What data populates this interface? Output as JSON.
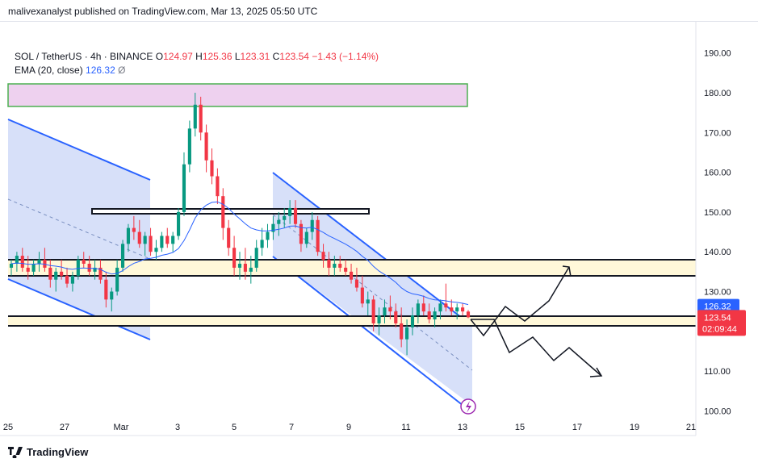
{
  "caption": "malivexanalyst published on TradingView.com, Mar 13, 2025 05:50 UTC",
  "brand": "TradingView",
  "legend": {
    "symbol": "SOL / TetherUS · 4h · BINANCE",
    "o_label": "O",
    "o": "124.97",
    "h_label": "H",
    "h": "125.36",
    "l_label": "L",
    "l": "123.31",
    "c_label": "C",
    "c": "123.54",
    "change": "−1.43 (−1.14%)",
    "ema_label": "EMA (20, close)",
    "ema_value": "126.32",
    "ema_extra": "Ø"
  },
  "price_tags": {
    "ema": "126.32",
    "close": "123.54",
    "countdown": "02:09:44"
  },
  "colors": {
    "up": "#089981",
    "down": "#f23645",
    "ema": "#2962ff",
    "channel_fill": "#c9d6f7",
    "pink_zone": "#eed1ef",
    "pink_border": "#4caf50",
    "yellow_zone": "#fff8d9"
  },
  "chart_data": {
    "type": "candlestick",
    "symbol": "SOL / TetherUS",
    "interval": "4h",
    "exchange": "BINANCE",
    "x_ticks": [
      "25",
      "27",
      "Mar",
      "3",
      "5",
      "7",
      "9",
      "11",
      "13",
      "15",
      "17",
      "19",
      "21"
    ],
    "y_ticks": [
      100,
      110,
      120,
      130,
      140,
      150,
      160,
      170,
      180,
      190
    ],
    "y_tick_labels": [
      "100.00",
      "110.00",
      "120.00",
      "130.00",
      "140.00",
      "150.00",
      "160.00",
      "170.00",
      "180.00",
      "190.00"
    ],
    "ylim": [
      98,
      197
    ],
    "xlim_days": [
      25,
      21
    ],
    "ohlc": [
      [
        136,
        138,
        134,
        137
      ],
      [
        137,
        140,
        135,
        139
      ],
      [
        139,
        141,
        135,
        136
      ],
      [
        136,
        139,
        133,
        135
      ],
      [
        135,
        138,
        134,
        137
      ],
      [
        137,
        140,
        135,
        138
      ],
      [
        138,
        141,
        135,
        136
      ],
      [
        136,
        138,
        131,
        133
      ],
      [
        133,
        136,
        130,
        135
      ],
      [
        135,
        138,
        133,
        134
      ],
      [
        134,
        136,
        131,
        132
      ],
      [
        132,
        135,
        130,
        134
      ],
      [
        134,
        139,
        133,
        138
      ],
      [
        138,
        140,
        136,
        137
      ],
      [
        137,
        139,
        134,
        135
      ],
      [
        135,
        138,
        133,
        136
      ],
      [
        136,
        138,
        132,
        133
      ],
      [
        133,
        135,
        126,
        128
      ],
      [
        128,
        131,
        125,
        130
      ],
      [
        130,
        138,
        129,
        136
      ],
      [
        136,
        143,
        135,
        142
      ],
      [
        142,
        147,
        140,
        146
      ],
      [
        146,
        149,
        143,
        145
      ],
      [
        145,
        148,
        141,
        142
      ],
      [
        142,
        145,
        139,
        144
      ],
      [
        144,
        146,
        139,
        140
      ],
      [
        140,
        143,
        138,
        141
      ],
      [
        141,
        145,
        140,
        144
      ],
      [
        144,
        146,
        141,
        142
      ],
      [
        142,
        145,
        140,
        144
      ],
      [
        144,
        151,
        143,
        150
      ],
      [
        150,
        165,
        149,
        162
      ],
      [
        162,
        173,
        160,
        171
      ],
      [
        171,
        180,
        169,
        177
      ],
      [
        177,
        179,
        168,
        170
      ],
      [
        170,
        172,
        160,
        163
      ],
      [
        163,
        166,
        157,
        159
      ],
      [
        159,
        161,
        152,
        154
      ],
      [
        154,
        156,
        143,
        146
      ],
      [
        146,
        148,
        139,
        141
      ],
      [
        141,
        144,
        134,
        136
      ],
      [
        136,
        140,
        133,
        137
      ],
      [
        137,
        141,
        133,
        135
      ],
      [
        135,
        139,
        132,
        136
      ],
      [
        136,
        143,
        135,
        141
      ],
      [
        141,
        146,
        139,
        143
      ],
      [
        143,
        147,
        141,
        145
      ],
      [
        145,
        149,
        143,
        147
      ],
      [
        147,
        150,
        144,
        148
      ],
      [
        148,
        151,
        146,
        149
      ],
      [
        149,
        153,
        147,
        151
      ],
      [
        151,
        153,
        146,
        147
      ],
      [
        147,
        148,
        140,
        142
      ],
      [
        142,
        146,
        141,
        145
      ],
      [
        145,
        150,
        143,
        148
      ],
      [
        148,
        149,
        139,
        140
      ],
      [
        140,
        142,
        136,
        138
      ],
      [
        138,
        140,
        134,
        136
      ],
      [
        136,
        139,
        134,
        137
      ],
      [
        137,
        139,
        135,
        136
      ],
      [
        136,
        138,
        134,
        135
      ],
      [
        135,
        137,
        132,
        133
      ],
      [
        133,
        136,
        130,
        131
      ],
      [
        131,
        134,
        126,
        127
      ],
      [
        127,
        130,
        124,
        128
      ],
      [
        128,
        129,
        120,
        122
      ],
      [
        122,
        126,
        119,
        124
      ],
      [
        124,
        128,
        122,
        126
      ],
      [
        126,
        129,
        123,
        125
      ],
      [
        125,
        127,
        121,
        122
      ],
      [
        122,
        126,
        116,
        118
      ],
      [
        118,
        123,
        114,
        121
      ],
      [
        121,
        126,
        119,
        124
      ],
      [
        124,
        128,
        122,
        127
      ],
      [
        127,
        129,
        124,
        125
      ],
      [
        125,
        127,
        122,
        123
      ],
      [
        123,
        126,
        121,
        125
      ],
      [
        125,
        128,
        123,
        127
      ],
      [
        127,
        132,
        125,
        126
      ],
      [
        126,
        128,
        124,
        125
      ],
      [
        125,
        127,
        123,
        126
      ],
      [
        126,
        127,
        124,
        125
      ],
      [
        124.97,
        125.36,
        123.31,
        123.54
      ]
    ],
    "ema_20_close_last": 126.32,
    "last_close": 123.54
  }
}
